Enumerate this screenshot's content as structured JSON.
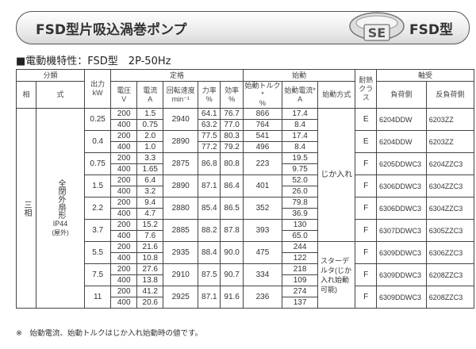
{
  "header": {
    "title": "FSD型片吸込渦巻ポンプ",
    "model": "FSD型",
    "logo_text": "SE"
  },
  "subtitle": "■電動機特性：FSD型　2P-50Hz",
  "table": {
    "headers": {
      "classification": "分類",
      "phase": "相",
      "type": "式",
      "output": "出力",
      "output_unit": "kW",
      "rating": "定格",
      "voltage": "電圧",
      "voltage_unit": "V",
      "current": "電流",
      "current_unit": "A",
      "speed": "回転速度",
      "speed_unit": "min⁻¹",
      "pf": "力率",
      "pf_unit": "%",
      "eff": "効率",
      "eff_unit": "%",
      "starting": "始動",
      "torque": "始動トルク*",
      "torque_unit": "%",
      "start_current": "始動電流*",
      "start_current_unit": "A",
      "start_method": "始動方式",
      "insulation": "耐熱",
      "insulation_sub": "クラス",
      "bearing": "軸受",
      "load_side": "負荷側",
      "anti_load_side": "反負荷側"
    },
    "phase": "三相",
    "type": "全閉外扇形",
    "type_ip": "IP44",
    "type_env": "(屋外)",
    "start_methods": [
      "じか入れ",
      "スターデルタ(じか入れ始動可能)"
    ],
    "rows": [
      {
        "kw": "0.25",
        "v": [
          "200",
          "400"
        ],
        "a": [
          "1.5",
          "0.75"
        ],
        "rpm": "2940",
        "pf": [
          "64.1",
          "63.2"
        ],
        "eff": [
          "76.7",
          "77.0"
        ],
        "torque": [
          "866",
          "764"
        ],
        "sa": [
          "17.4",
          "8.4"
        ],
        "cls": "E",
        "load": "6204DDW",
        "anti": "6203ZZ"
      },
      {
        "kw": "0.4",
        "v": [
          "200",
          "400"
        ],
        "a": [
          "2.0",
          "1.0"
        ],
        "rpm": "2890",
        "pf": [
          "77.5",
          "77.2"
        ],
        "eff": [
          "80.3",
          "79.2"
        ],
        "torque": [
          "541",
          "496"
        ],
        "sa": [
          "17.4",
          "8.4"
        ],
        "cls": "E",
        "load": "6204DDW",
        "anti": "6203ZZ"
      },
      {
        "kw": "0.75",
        "v": [
          "200",
          "400"
        ],
        "a": [
          "3.3",
          "1.65"
        ],
        "rpm": "2875",
        "pf": [
          "86.8"
        ],
        "eff": [
          "80.8"
        ],
        "torque": [
          "223"
        ],
        "sa": [
          "19.5",
          "9.75"
        ],
        "cls": "F",
        "load": "6205DDWC3",
        "anti": "6204ZZC3"
      },
      {
        "kw": "1.5",
        "v": [
          "200",
          "400"
        ],
        "a": [
          "6.4",
          "3.2"
        ],
        "rpm": "2890",
        "pf": [
          "87.1"
        ],
        "eff": [
          "86.4"
        ],
        "torque": [
          "401"
        ],
        "sa": [
          "52.0",
          "26.0"
        ],
        "cls": "F",
        "load": "6306DDWC3",
        "anti": "6304ZZC3"
      },
      {
        "kw": "2.2",
        "v": [
          "200",
          "400"
        ],
        "a": [
          "9.4",
          "4.7"
        ],
        "rpm": "2880",
        "pf": [
          "85.4"
        ],
        "eff": [
          "86.5"
        ],
        "torque": [
          "352"
        ],
        "sa": [
          "79.8",
          "36.9"
        ],
        "cls": "F",
        "load": "6306DDWC3",
        "anti": "6304ZZC3"
      },
      {
        "kw": "3.7",
        "v": [
          "200",
          "400"
        ],
        "a": [
          "15.2",
          "7.6"
        ],
        "rpm": "2885",
        "pf": [
          "88.2"
        ],
        "eff": [
          "87.8"
        ],
        "torque": [
          "393"
        ],
        "sa": [
          "130",
          "65.0"
        ],
        "cls": "F",
        "load": "6307DDWC3",
        "anti": "6305ZZC3"
      },
      {
        "kw": "5.5",
        "v": [
          "200",
          "400"
        ],
        "a": [
          "21.6",
          "10.8"
        ],
        "rpm": "2935",
        "pf": [
          "88.4"
        ],
        "eff": [
          "90.0"
        ],
        "torque": [
          "475"
        ],
        "sa": [
          "244",
          "122"
        ],
        "cls": "F",
        "load": "6309DDWC3",
        "anti": "6306ZZC3"
      },
      {
        "kw": "7.5",
        "v": [
          "200",
          "400"
        ],
        "a": [
          "27.6",
          "13.8"
        ],
        "rpm": "2910",
        "pf": [
          "87.5"
        ],
        "eff": [
          "90.7"
        ],
        "torque": [
          "334"
        ],
        "sa": [
          "218",
          "109"
        ],
        "cls": "F",
        "load": "6309DDWC3",
        "anti": "6208ZZC3"
      },
      {
        "kw": "11",
        "v": [
          "200",
          "400"
        ],
        "a": [
          "41.2",
          "20.6"
        ],
        "rpm": "2925",
        "pf": [
          "87.1"
        ],
        "eff": [
          "91.6"
        ],
        "torque": [
          "236"
        ],
        "sa": [
          "274",
          "137"
        ],
        "cls": "F",
        "load": "6309DDWC3",
        "anti": "6208ZZC3"
      }
    ]
  },
  "footnote": "※　始動電流、始動トルクはじか入れ始動時の値です。"
}
